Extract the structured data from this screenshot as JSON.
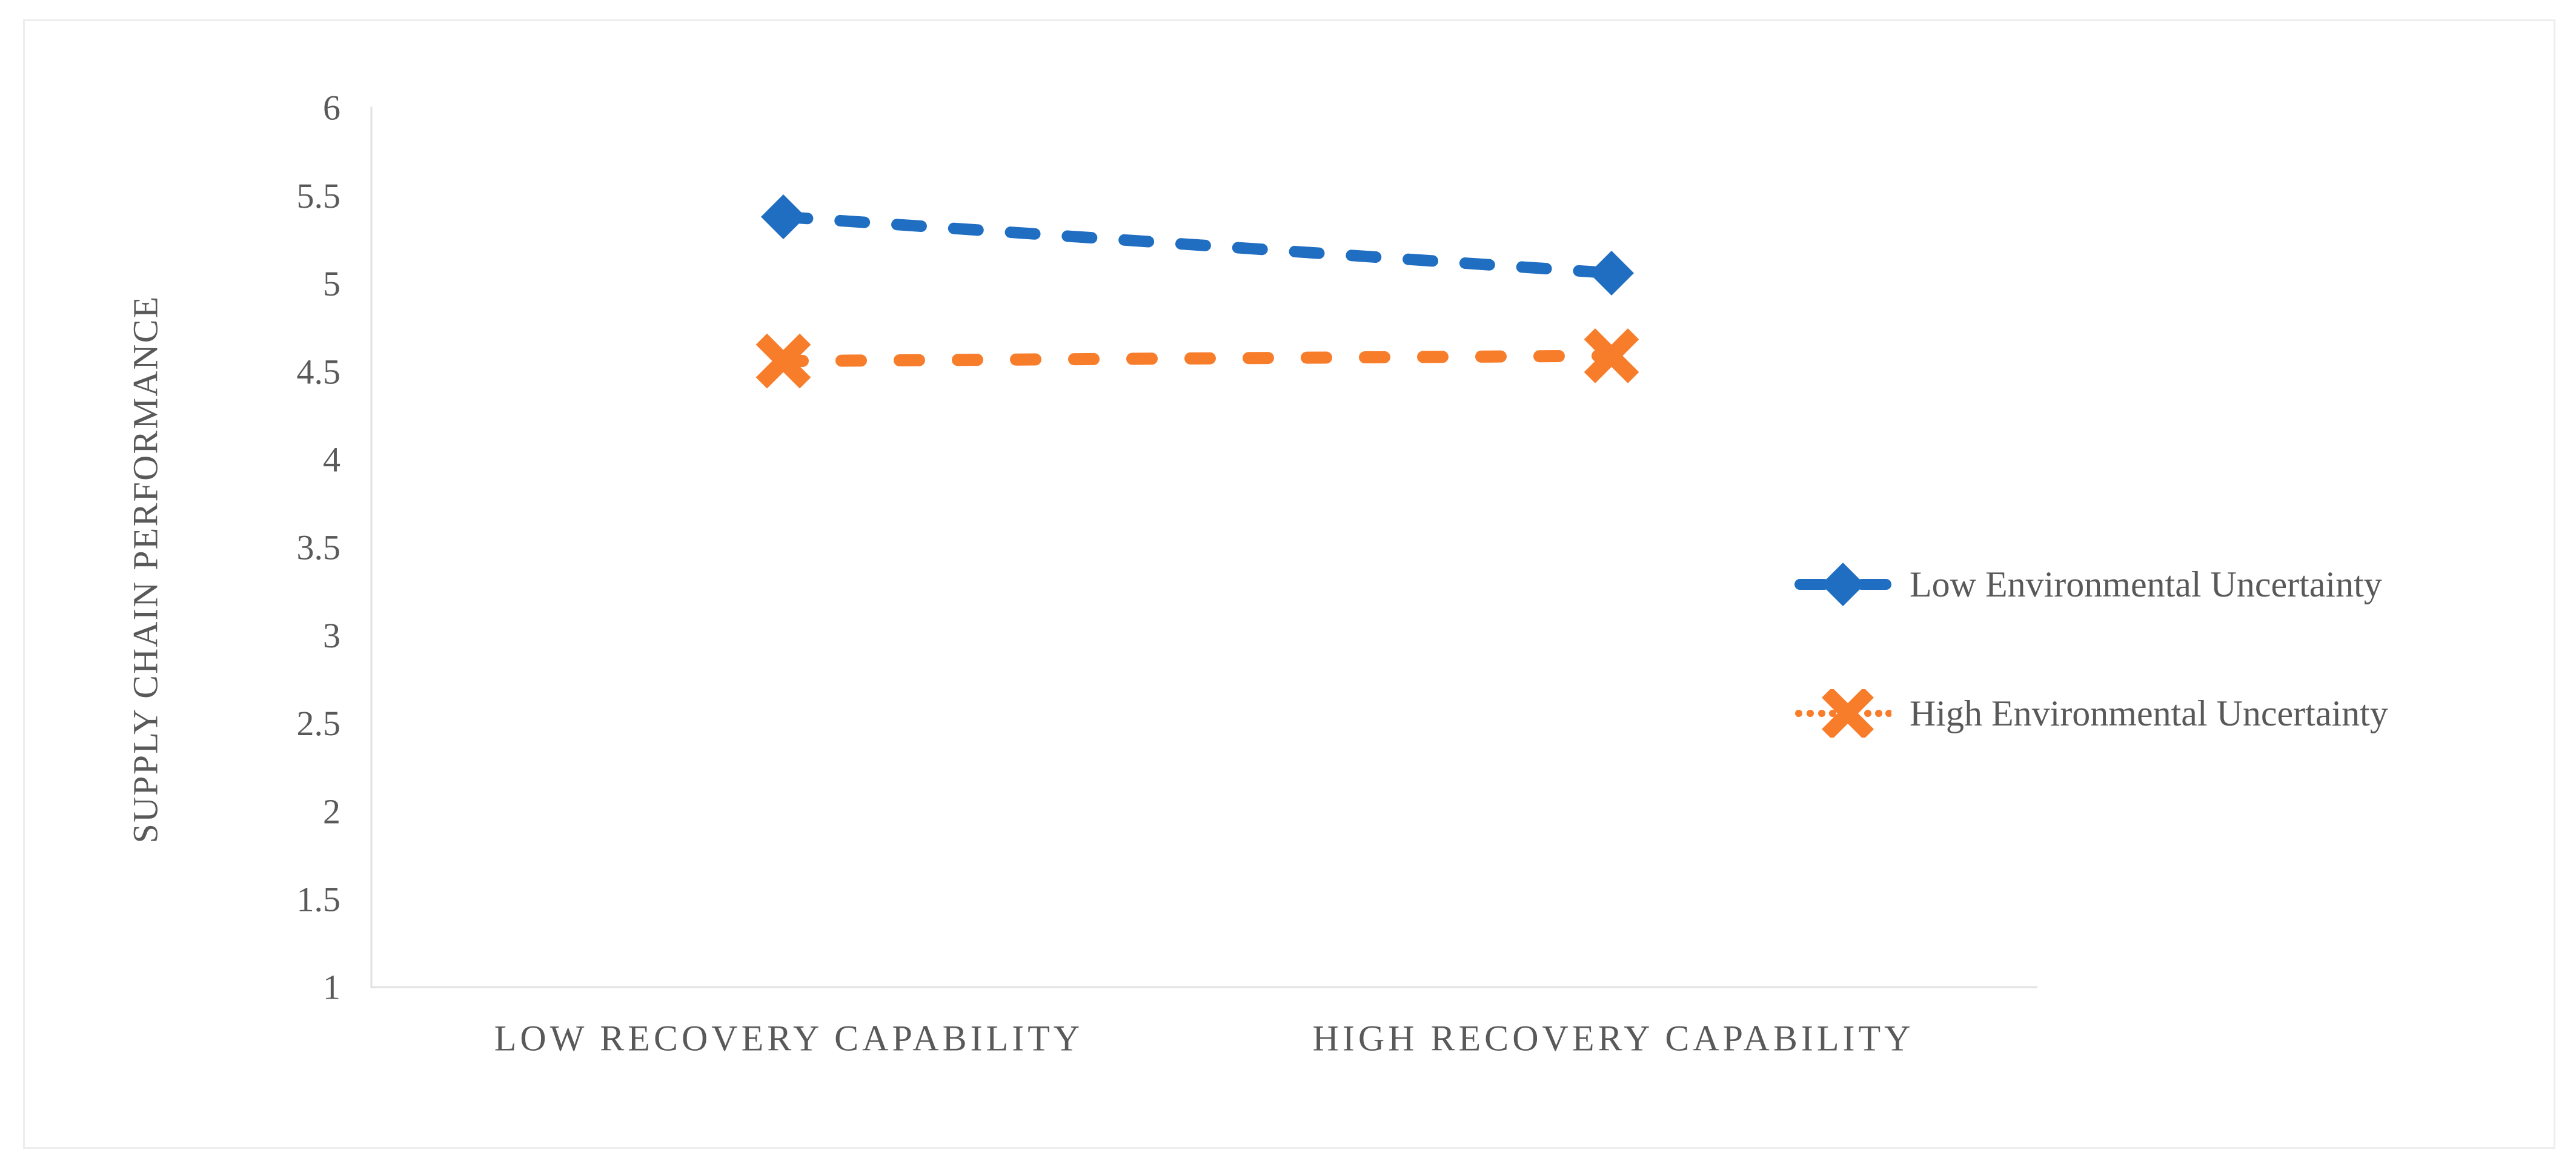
{
  "chart_data": {
    "type": "line",
    "title": "",
    "xlabel": "",
    "ylabel": "SUPPLY CHAIN PERFORMANCE",
    "categories": [
      "LOW RECOVERY CAPABILITY",
      "HIGH RECOVERY CAPABILITY"
    ],
    "ylim": [
      1,
      6
    ],
    "yticks": [
      6,
      5.5,
      5,
      4.5,
      4,
      3.5,
      3,
      2.5,
      2,
      1.5,
      1
    ],
    "grid": false,
    "legend_position": "right-middle",
    "series": [
      {
        "name": "Low Environmental Uncertainty",
        "values": [
          5.38,
          5.06
        ],
        "color": "#1F6EC2",
        "marker": "diamond",
        "line_style": "dashed"
      },
      {
        "name": "High Environmental Uncertainty",
        "values": [
          4.56,
          4.59
        ],
        "color": "#F87D2B",
        "marker": "x",
        "line_style": "dashed"
      }
    ],
    "axis_color": "#E1E1E1",
    "text_color": "#595959",
    "background_color": "#FFFFFF",
    "frame_border_color": "#EDEDED"
  }
}
